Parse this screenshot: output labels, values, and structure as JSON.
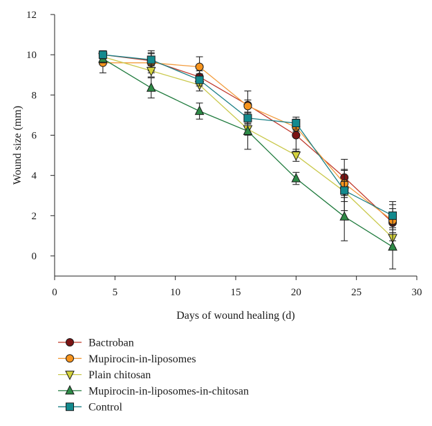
{
  "chart_data": {
    "type": "line",
    "xlabel": "Days of wound healing (d)",
    "ylabel": "Wound size (mm)",
    "xlim": [
      0,
      30
    ],
    "ylim": [
      -1,
      12
    ],
    "xticks": [
      "0",
      "5",
      "10",
      "15",
      "20",
      "25",
      "30"
    ],
    "yticks": [
      "0",
      "2",
      "4",
      "6",
      "8",
      "10",
      "12"
    ],
    "grid": false,
    "legend_position": "bottom",
    "x": [
      4,
      8,
      12,
      16,
      20,
      24,
      28
    ],
    "series": [
      {
        "name": "Bactroban",
        "marker": "circle",
        "line_color": "#c0392b",
        "marker_color": "#7b1414",
        "values": [
          10.0,
          9.7,
          8.9,
          7.5,
          6.0,
          3.9,
          1.65
        ],
        "errors": [
          0.15,
          0.5,
          0.3,
          0.7,
          0.8,
          0.9,
          0.9
        ]
      },
      {
        "name": "Mupirocin-in-liposomes",
        "marker": "circle",
        "line_color": "#f39c3d",
        "marker_color": "#f7941d",
        "values": [
          9.6,
          9.6,
          9.4,
          7.45,
          6.4,
          3.6,
          1.75
        ],
        "errors": [
          0.5,
          0.5,
          0.5,
          0.3,
          0.2,
          0.7,
          0.6
        ]
      },
      {
        "name": "Plain chitosan",
        "marker": "triangle-down",
        "line_color": "#c9c84a",
        "marker_color": "#d4d23c",
        "values": [
          9.9,
          9.2,
          8.5,
          6.3,
          5.0,
          3.2,
          0.9
        ],
        "errors": [
          0.2,
          0.3,
          0.3,
          0.3,
          0.3,
          0.5,
          0.5
        ]
      },
      {
        "name": "Mupirocin-in-liposomes-in-chitosan",
        "marker": "triangle-up",
        "line_color": "#1e7a3c",
        "marker_color": "#2e8b47",
        "values": [
          9.8,
          8.35,
          7.2,
          6.2,
          3.85,
          1.95,
          0.45
        ],
        "errors": [
          0.2,
          0.5,
          0.4,
          0.9,
          0.3,
          1.2,
          1.1
        ]
      },
      {
        "name": "Control",
        "marker": "square",
        "line_color": "#1a7f85",
        "marker_color": "#138a8e",
        "values": [
          10.0,
          9.75,
          8.75,
          6.85,
          6.6,
          3.25,
          2.0
        ],
        "errors": [
          0.2,
          0.3,
          0.3,
          0.3,
          0.3,
          1.0,
          0.7
        ]
      }
    ]
  }
}
